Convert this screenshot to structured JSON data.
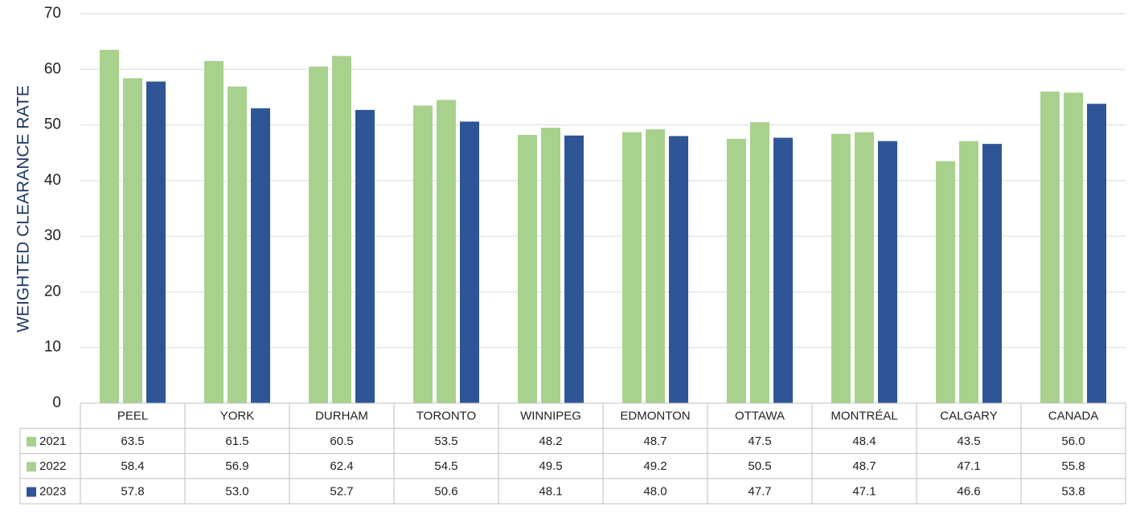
{
  "chart_data": {
    "type": "bar",
    "y_label": "WEIGHTED CLEARANCE RATE",
    "categories": [
      "PEEL",
      "YORK",
      "DURHAM",
      "TORONTO",
      "WINNIPEG",
      "EDMONTON",
      "OTTAWA",
      "MONTRÉAL",
      "CALGARY",
      "CANADA"
    ],
    "series": [
      {
        "name": "2021",
        "color": "#a9d18e",
        "values": [
          63.5,
          61.5,
          60.5,
          53.5,
          48.2,
          48.7,
          47.5,
          48.4,
          43.5,
          56.0
        ],
        "value_labels": [
          "63.5",
          "61.5",
          "60.5",
          "53.5",
          "48.2",
          "48.7",
          "47.5",
          "48.4",
          "43.5",
          "56.0"
        ]
      },
      {
        "name": "2022",
        "color": "#a9d18e",
        "values": [
          58.4,
          56.9,
          62.4,
          54.5,
          49.5,
          49.2,
          50.5,
          48.7,
          47.1,
          55.8
        ],
        "value_labels": [
          "58.4",
          "56.9",
          "62.4",
          "54.5",
          "49.5",
          "49.2",
          "50.5",
          "48.7",
          "47.1",
          "55.8"
        ]
      },
      {
        "name": "2023",
        "color": "#2f5597",
        "values": [
          57.8,
          53.0,
          52.7,
          50.6,
          48.1,
          48.0,
          47.7,
          47.1,
          46.6,
          53.8
        ],
        "value_labels": [
          "57.8",
          "53.0",
          "52.7",
          "50.6",
          "48.1",
          "48.0",
          "47.7",
          "47.1",
          "46.6",
          "53.8"
        ]
      }
    ],
    "ylim": [
      0,
      70
    ],
    "yticks": [
      0,
      10,
      20,
      30,
      40,
      50,
      60,
      70
    ],
    "grid": true
  }
}
